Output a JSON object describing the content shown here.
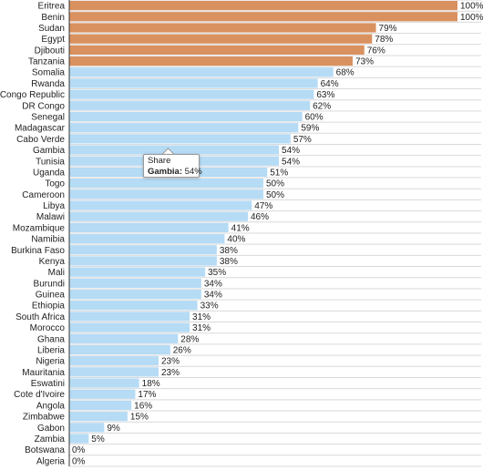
{
  "chart_data": {
    "type": "bar",
    "orientation": "horizontal",
    "categories": [
      "Eritrea",
      "Benin",
      "Sudan",
      "Egypt",
      "Djibouti",
      "Tanzania",
      "Somalia",
      "Rwanda",
      "Congo Republic",
      "DR Congo",
      "Senegal",
      "Madagascar",
      "Cabo Verde",
      "Gambia",
      "Tunisia",
      "Uganda",
      "Togo",
      "Cameroon",
      "Libya",
      "Malawi",
      "Mozambique",
      "Namibia",
      "Burkina Faso",
      "Kenya",
      "Mali",
      "Burundi",
      "Guinea",
      "Ethiopia",
      "South Africa",
      "Morocco",
      "Ghana",
      "Liberia",
      "Nigeria",
      "Mauritania",
      "Eswatini",
      "Cote d'Ivoire",
      "Angola",
      "Zimbabwe",
      "Gabon",
      "Zambia",
      "Botswana",
      "Algeria"
    ],
    "values": [
      100,
      100,
      79,
      78,
      76,
      73,
      68,
      64,
      63,
      62,
      60,
      59,
      57,
      54,
      54,
      51,
      50,
      50,
      47,
      46,
      41,
      40,
      38,
      38,
      35,
      34,
      34,
      33,
      31,
      31,
      28,
      26,
      23,
      23,
      18,
      17,
      16,
      15,
      9,
      5,
      0,
      0
    ],
    "value_labels": [
      "100%",
      "100%",
      "79%",
      "78%",
      "76%",
      "73%",
      "68%",
      "64%",
      "63%",
      "62%",
      "60%",
      "59%",
      "57%",
      "54%",
      "54%",
      "51%",
      "50%",
      "50%",
      "47%",
      "46%",
      "41%",
      "40%",
      "38%",
      "38%",
      "35%",
      "34%",
      "34%",
      "33%",
      "31%",
      "31%",
      "28%",
      "26%",
      "23%",
      "23%",
      "18%",
      "17%",
      "16%",
      "15%",
      "9%",
      "5%",
      "0%",
      "0%"
    ],
    "highlight_count": 6,
    "colors": {
      "highlight": "#d9915f",
      "default": "#b5dbf5",
      "grid": "#d9d9d9"
    },
    "xlim": [
      0,
      100
    ],
    "grid": true,
    "legend": "none",
    "tooltip": {
      "series_name": "Share",
      "category": "Gambia:",
      "value": "54%"
    }
  }
}
